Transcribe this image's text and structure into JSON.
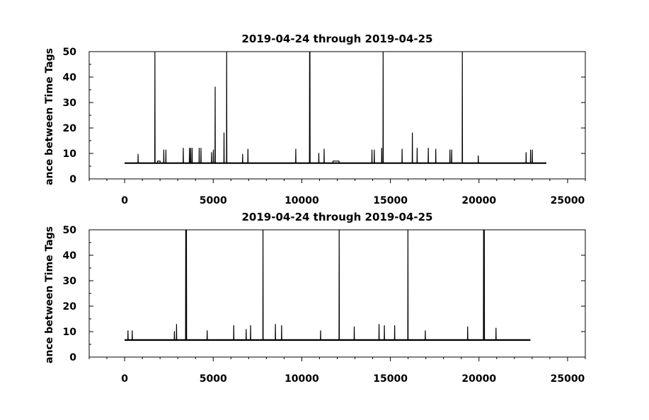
{
  "chart_data": [
    {
      "type": "line",
      "title": "2019-04-24 through 2019-04-25",
      "xlabel": "",
      "ylabel": "ance between Time Tags",
      "xlim": [
        -2000,
        26000
      ],
      "ylim": [
        0,
        50
      ],
      "xticks": [
        0,
        5000,
        10000,
        15000,
        20000,
        25000
      ],
      "xtick_labels": [
        "0",
        "5000",
        "10000",
        "15000",
        "20000",
        "25000"
      ],
      "yticks": [
        0,
        10,
        20,
        30,
        40,
        50
      ],
      "ytick_labels": [
        "0",
        "10",
        "20",
        "30",
        "40",
        "50"
      ],
      "grid": false,
      "baseline": 6.2,
      "x_range": [
        0,
        23800
      ],
      "series": [
        {
          "color": "#000000",
          "points": [
            [
              0,
              6.2
            ],
            [
              750,
              6.2
            ],
            [
              760,
              9.8
            ],
            [
              770,
              6.2
            ],
            [
              1700,
              6.2
            ],
            [
              1710,
              50
            ],
            [
              1720,
              6.2
            ],
            [
              1850,
              6.2
            ],
            [
              1860,
              7.0
            ],
            [
              2000,
              7.0
            ],
            [
              2010,
              6.2
            ],
            [
              2200,
              6.2
            ],
            [
              2210,
              11.5
            ],
            [
              2220,
              6.2
            ],
            [
              2320,
              6.2
            ],
            [
              2330,
              11.5
            ],
            [
              2340,
              6.2
            ],
            [
              3300,
              6.2
            ],
            [
              3310,
              12.2
            ],
            [
              3320,
              6.2
            ],
            [
              3650,
              6.2
            ],
            [
              3660,
              12.2
            ],
            [
              3670,
              6.2
            ],
            [
              3720,
              6.2
            ],
            [
              3730,
              12.2
            ],
            [
              3740,
              6.2
            ],
            [
              3800,
              6.2
            ],
            [
              3810,
              12.2
            ],
            [
              3820,
              6.2
            ],
            [
              4200,
              6.2
            ],
            [
              4210,
              12.2
            ],
            [
              4220,
              6.2
            ],
            [
              4300,
              6.2
            ],
            [
              4310,
              12.2
            ],
            [
              4320,
              6.2
            ],
            [
              4900,
              6.2
            ],
            [
              4910,
              10.5
            ],
            [
              4920,
              6.2
            ],
            [
              5000,
              6.2
            ],
            [
              5010,
              11.5
            ],
            [
              5020,
              6.2
            ],
            [
              5100,
              6.2
            ],
            [
              5110,
              36.2
            ],
            [
              5120,
              6.2
            ],
            [
              5600,
              6.2
            ],
            [
              5610,
              18.2
            ],
            [
              5620,
              6.2
            ],
            [
              5750,
              6.2
            ],
            [
              5760,
              50
            ],
            [
              5770,
              6.2
            ],
            [
              6650,
              6.2
            ],
            [
              6660,
              9.8
            ],
            [
              6670,
              6.2
            ],
            [
              6950,
              6.2
            ],
            [
              6960,
              11.8
            ],
            [
              6970,
              6.2
            ],
            [
              9650,
              6.2
            ],
            [
              9660,
              11.8
            ],
            [
              9670,
              6.2
            ],
            [
              10430,
              6.2
            ],
            [
              10440,
              50
            ],
            [
              10450,
              6.2
            ],
            [
              10460,
              50
            ],
            [
              10470,
              6.2
            ],
            [
              10950,
              6.2
            ],
            [
              10960,
              10.2
            ],
            [
              10970,
              6.2
            ],
            [
              11250,
              6.2
            ],
            [
              11260,
              11.8
            ],
            [
              11270,
              6.2
            ],
            [
              11750,
              6.2
            ],
            [
              11760,
              7.0
            ],
            [
              12100,
              7.0
            ],
            [
              12110,
              6.2
            ],
            [
              13950,
              6.2
            ],
            [
              13960,
              11.5
            ],
            [
              13970,
              6.2
            ],
            [
              14080,
              6.2
            ],
            [
              14090,
              11.5
            ],
            [
              14100,
              6.2
            ],
            [
              14500,
              6.2
            ],
            [
              14510,
              12.2
            ],
            [
              14520,
              6.2
            ],
            [
              14580,
              6.2
            ],
            [
              14590,
              50
            ],
            [
              14600,
              6.2
            ],
            [
              15650,
              6.2
            ],
            [
              15660,
              11.8
            ],
            [
              15670,
              6.2
            ],
            [
              16230,
              6.2
            ],
            [
              16240,
              18.2
            ],
            [
              16250,
              6.2
            ],
            [
              16500,
              6.2
            ],
            [
              16510,
              12.2
            ],
            [
              16520,
              6.2
            ],
            [
              17130,
              6.2
            ],
            [
              17140,
              12.2
            ],
            [
              17150,
              6.2
            ],
            [
              17550,
              6.2
            ],
            [
              17560,
              11.8
            ],
            [
              17570,
              6.2
            ],
            [
              18350,
              6.2
            ],
            [
              18360,
              11.5
            ],
            [
              18370,
              6.2
            ],
            [
              18450,
              6.2
            ],
            [
              18460,
              11.5
            ],
            [
              18470,
              6.2
            ],
            [
              19050,
              6.2
            ],
            [
              19060,
              50
            ],
            [
              19070,
              6.2
            ],
            [
              19950,
              6.2
            ],
            [
              19960,
              9.2
            ],
            [
              19970,
              6.2
            ],
            [
              22650,
              6.2
            ],
            [
              22660,
              10.5
            ],
            [
              22670,
              6.2
            ],
            [
              22900,
              6.2
            ],
            [
              22910,
              11.5
            ],
            [
              22920,
              6.2
            ],
            [
              23000,
              6.2
            ],
            [
              23010,
              11.5
            ],
            [
              23020,
              6.2
            ],
            [
              23800,
              6.2
            ]
          ]
        }
      ]
    },
    {
      "type": "line",
      "title": "2019-04-24 through 2019-04-25",
      "xlabel": "",
      "ylabel": "ance between Time Tags",
      "xlim": [
        -2000,
        26000
      ],
      "ylim": [
        0,
        50
      ],
      "xticks": [
        0,
        5000,
        10000,
        15000,
        20000,
        25000
      ],
      "xtick_labels": [
        "0",
        "5000",
        "10000",
        "15000",
        "20000",
        "25000"
      ],
      "yticks": [
        0,
        10,
        20,
        30,
        40,
        50
      ],
      "ytick_labels": [
        "0",
        "10",
        "20",
        "30",
        "40",
        "50"
      ],
      "grid": false,
      "baseline": 6.7,
      "x_range": [
        0,
        22900
      ],
      "series": [
        {
          "color": "#000000",
          "points": [
            [
              0,
              6.7
            ],
            [
              180,
              6.7
            ],
            [
              190,
              10.5
            ],
            [
              200,
              6.7
            ],
            [
              420,
              6.7
            ],
            [
              430,
              10.5
            ],
            [
              440,
              6.7
            ],
            [
              2800,
              6.7
            ],
            [
              2810,
              10.2
            ],
            [
              2820,
              6.7
            ],
            [
              2920,
              6.7
            ],
            [
              2930,
              13.0
            ],
            [
              2940,
              6.7
            ],
            [
              3440,
              6.7
            ],
            [
              3450,
              50
            ],
            [
              3460,
              6.7
            ],
            [
              3480,
              6.7
            ],
            [
              3490,
              50
            ],
            [
              3500,
              6.7
            ],
            [
              4650,
              6.7
            ],
            [
              4660,
              10.5
            ],
            [
              4670,
              6.7
            ],
            [
              6150,
              6.7
            ],
            [
              6160,
              12.5
            ],
            [
              6170,
              6.7
            ],
            [
              6850,
              6.7
            ],
            [
              6860,
              11.0
            ],
            [
              6870,
              6.7
            ],
            [
              7100,
              6.7
            ],
            [
              7110,
              12.5
            ],
            [
              7120,
              6.7
            ],
            [
              7800,
              6.7
            ],
            [
              7810,
              50
            ],
            [
              7820,
              6.7
            ],
            [
              8500,
              6.7
            ],
            [
              8510,
              13.0
            ],
            [
              8520,
              6.7
            ],
            [
              8850,
              6.7
            ],
            [
              8860,
              12.5
            ],
            [
              8870,
              6.7
            ],
            [
              11050,
              6.7
            ],
            [
              11060,
              10.5
            ],
            [
              11070,
              6.7
            ],
            [
              12100,
              6.7
            ],
            [
              12110,
              50
            ],
            [
              12120,
              6.7
            ],
            [
              12950,
              6.7
            ],
            [
              12960,
              12.0
            ],
            [
              12970,
              6.7
            ],
            [
              14350,
              6.7
            ],
            [
              14360,
              13.0
            ],
            [
              14370,
              6.7
            ],
            [
              14650,
              6.7
            ],
            [
              14660,
              12.5
            ],
            [
              14670,
              6.7
            ],
            [
              15230,
              6.7
            ],
            [
              15240,
              12.5
            ],
            [
              15250,
              6.7
            ],
            [
              15980,
              6.7
            ],
            [
              15990,
              50
            ],
            [
              16000,
              6.7
            ],
            [
              16960,
              6.7
            ],
            [
              16970,
              10.5
            ],
            [
              16980,
              6.7
            ],
            [
              19350,
              6.7
            ],
            [
              19360,
              12.0
            ],
            [
              19370,
              6.7
            ],
            [
              20250,
              6.7
            ],
            [
              20260,
              50
            ],
            [
              20270,
              6.7
            ],
            [
              20290,
              6.7
            ],
            [
              20300,
              50
            ],
            [
              20310,
              6.7
            ],
            [
              20950,
              6.7
            ],
            [
              20960,
              11.5
            ],
            [
              20970,
              6.7
            ],
            [
              22900,
              6.7
            ]
          ]
        }
      ]
    }
  ]
}
